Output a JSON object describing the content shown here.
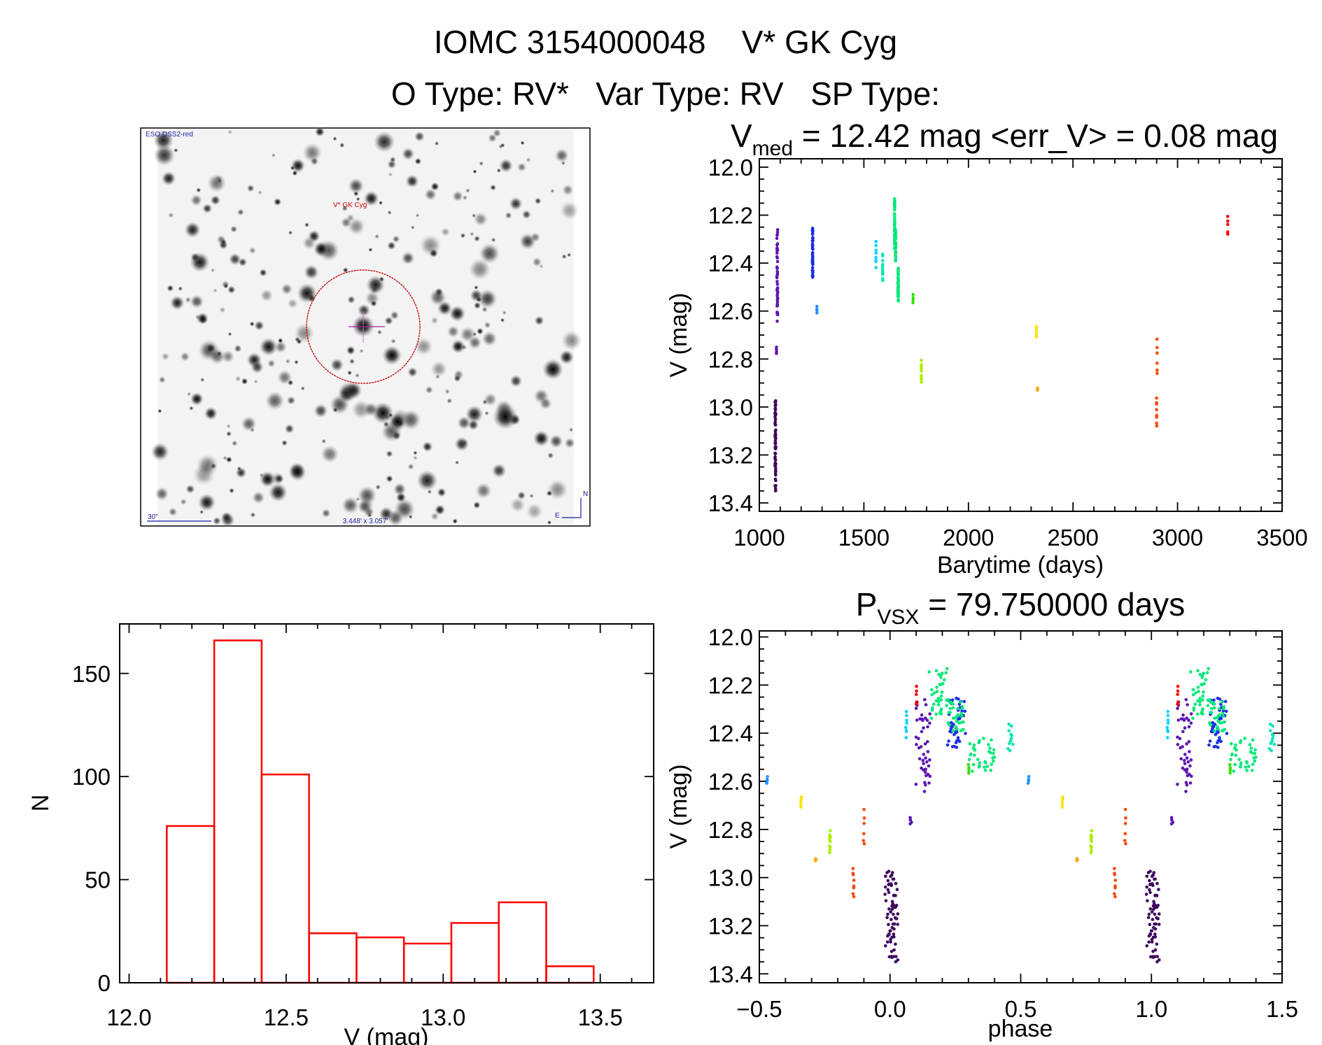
{
  "header": {
    "line1": "IOMC 3154000048    V* GK Cyg",
    "line2": "O Type: RV*   Var Type: RV   SP Type:"
  },
  "sky_image": {
    "survey_label": "ESO DSS2-red",
    "target_label": "V* GK Cyg",
    "scale_label": "30\"",
    "fov_label": "3.448' x 3.057'",
    "north_label": "N",
    "east_label": "E"
  },
  "chart_data": [
    {
      "id": "histogram",
      "type": "bar",
      "title": "",
      "xlabel": "V (mag)",
      "ylabel": "N",
      "bin_edges": [
        12.12,
        12.271,
        12.422,
        12.573,
        12.724,
        12.875,
        13.026,
        13.177,
        13.328,
        13.479
      ],
      "values": [
        76,
        166,
        101,
        24,
        22,
        19,
        29,
        39,
        8
      ],
      "xlim": [
        11.97,
        13.67
      ],
      "ylim": [
        0,
        174
      ],
      "xticks": [
        "12.0",
        "12.5",
        "13.0",
        "13.5"
      ],
      "yticks": [
        "0",
        "50",
        "100",
        "150"
      ],
      "color": "#ff0000"
    },
    {
      "id": "light-curve",
      "type": "scatter",
      "title_main": "V",
      "title_sub": "med",
      "title_rest": " = 12.42 mag <err_V> = 0.08 mag",
      "xlabel": "Barytime (days)",
      "ylabel": "V (mag)",
      "xlim": [
        1000,
        3500
      ],
      "ylim": [
        11.965,
        13.435
      ],
      "xticks": [
        "1000",
        "1500",
        "2000",
        "2500",
        "3000",
        "3500"
      ],
      "yticks": [
        "12.0",
        "12.2",
        "12.4",
        "12.6",
        "12.8",
        "13.0",
        "13.2",
        "13.4"
      ]
    },
    {
      "id": "phase-curve",
      "type": "scatter",
      "title_main": "P",
      "title_sub": "VSX",
      "title_rest": " = 79.750000 days",
      "xlabel": "phase",
      "ylabel": "V (mag)",
      "xlim": [
        -0.5,
        1.5
      ],
      "ylim": [
        11.975,
        13.437
      ],
      "xticks": [
        "−0.5",
        "0.0",
        "0.5",
        "1.0",
        "1.5"
      ],
      "yticks": [
        "12.0",
        "12.2",
        "12.4",
        "12.6",
        "12.8",
        "13.0",
        "13.2",
        "13.4"
      ]
    }
  ],
  "clusters": [
    {
      "t": 1077,
      "dt": 4,
      "phase": 0.005,
      "dp": 0.025,
      "mag": [
        12.94,
        13.37
      ],
      "n": 70,
      "color": "#3d0a5c"
    },
    {
      "t": 1086,
      "dt": 4,
      "phase": 0.125,
      "dp": 0.03,
      "mag": [
        12.24,
        12.66
      ],
      "n": 45,
      "color": "#5b16b0"
    },
    {
      "t": 1082,
      "dt": 1,
      "phase": 0.08,
      "dp": 0.003,
      "mag": [
        12.75,
        12.78
      ],
      "n": 4,
      "color": "#5b16b0"
    },
    {
      "t": 1255,
      "dt": 2,
      "phase": 0.255,
      "dp": 0.035,
      "mag": [
        12.23,
        12.48
      ],
      "n": 45,
      "color": "#1a2ee6"
    },
    {
      "t": 1275,
      "dt": 1,
      "phase": -0.47,
      "dp": 0.002,
      "mag": [
        12.58,
        12.61
      ],
      "n": 4,
      "color": "#1e90ff"
    },
    {
      "t": 1558,
      "dt": 1,
      "phase": 0.062,
      "dp": 0.002,
      "mag": [
        12.3,
        12.42
      ],
      "n": 8,
      "color": "#00d2ff"
    },
    {
      "t": 1590,
      "dt": 1,
      "phase": 0.46,
      "dp": 0.01,
      "mag": [
        12.36,
        12.48
      ],
      "n": 12,
      "color": "#00e6b4"
    },
    {
      "t": 1647,
      "dt": 2,
      "phase": 0.185,
      "dp": 0.035,
      "mag": [
        12.12,
        12.35
      ],
      "n": 35,
      "color": "#00e878"
    },
    {
      "t": 1652,
      "dt": 2,
      "phase": 0.25,
      "dp": 0.03,
      "mag": [
        12.25,
        12.41
      ],
      "n": 30,
      "color": "#00e878"
    },
    {
      "t": 1664,
      "dt": 3,
      "phase": 0.35,
      "dp": 0.05,
      "mag": [
        12.42,
        12.57
      ],
      "n": 35,
      "color": "#00e878"
    },
    {
      "t": 1735,
      "dt": 1,
      "phase": 0.3,
      "dp": 0.002,
      "mag": [
        12.53,
        12.57
      ],
      "n": 4,
      "color": "#33e000"
    },
    {
      "t": 1775,
      "dt": 1,
      "phase": -0.23,
      "dp": 0.002,
      "mag": [
        12.8,
        12.9
      ],
      "n": 10,
      "color": "#a8f000"
    },
    {
      "t": 2325,
      "dt": 1,
      "phase": -0.34,
      "dp": 0.002,
      "mag": [
        12.66,
        12.71
      ],
      "n": 5,
      "color": "#f5e600"
    },
    {
      "t": 2330,
      "dt": 1,
      "phase": -0.285,
      "dp": 0.002,
      "mag": [
        12.92,
        12.93
      ],
      "n": 3,
      "color": "#ffa500"
    },
    {
      "t": 2900,
      "dt": 1,
      "phase": -0.14,
      "dp": 0.002,
      "mag": [
        12.95,
        13.09
      ],
      "n": 8,
      "color": "#ff4500"
    },
    {
      "t": 2902,
      "dt": 1,
      "phase": -0.1,
      "dp": 0.002,
      "mag": [
        12.7,
        12.88
      ],
      "n": 6,
      "color": "#ff4500"
    },
    {
      "t": 3240,
      "dt": 1,
      "phase": 0.1,
      "dp": 0.002,
      "mag": [
        12.2,
        12.29
      ],
      "n": 5,
      "color": "#ff0000"
    }
  ]
}
